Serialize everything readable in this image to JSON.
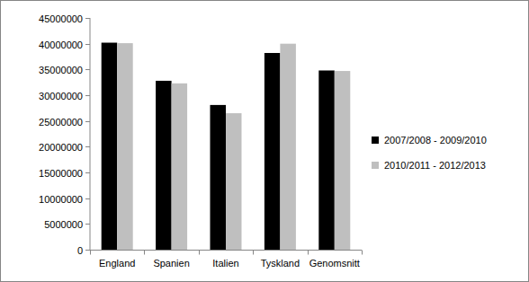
{
  "chart_data": {
    "type": "bar",
    "categories": [
      "England",
      "Spanien",
      "Italien",
      "Tyskland",
      "Genomsnitt"
    ],
    "series": [
      {
        "name": "2007/2008 - 2009/2010",
        "color": "#000000",
        "values": [
          40200000,
          32800000,
          28100000,
          38200000,
          34800000
        ]
      },
      {
        "name": "2010/2011 - 2012/2013",
        "color": "#bfbfbf",
        "values": [
          40100000,
          32300000,
          26500000,
          40000000,
          34700000
        ]
      }
    ],
    "ylim": [
      0,
      45000000
    ],
    "yticks": [
      0,
      5000000,
      10000000,
      15000000,
      20000000,
      25000000,
      30000000,
      35000000,
      40000000,
      45000000
    ],
    "grid": false,
    "legend": "right"
  }
}
